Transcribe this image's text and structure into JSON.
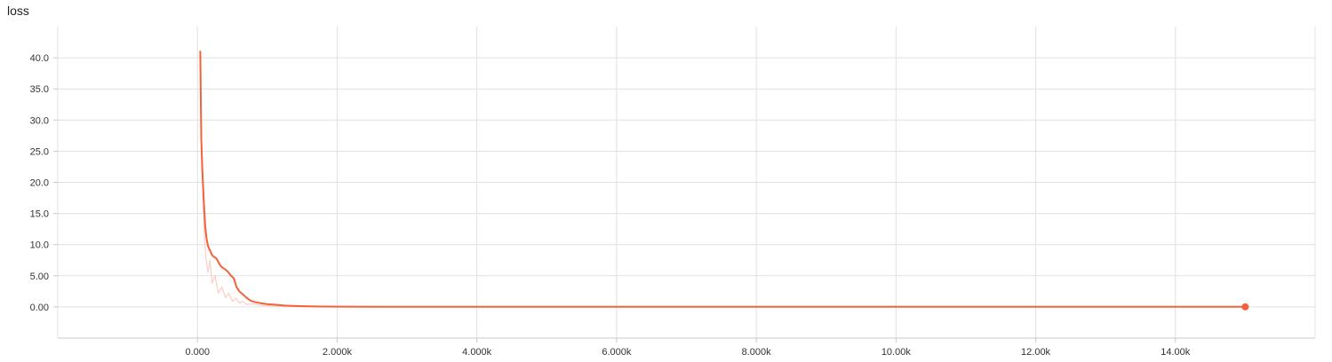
{
  "chart_data": {
    "type": "line",
    "title": "loss",
    "xlabel": "",
    "ylabel": "",
    "xlim": [
      -2000,
      16000
    ],
    "ylim": [
      -5,
      45
    ],
    "x_ticks": [
      {
        "value": 0,
        "label": "0.000"
      },
      {
        "value": 2000,
        "label": "2.000k"
      },
      {
        "value": 4000,
        "label": "4.000k"
      },
      {
        "value": 6000,
        "label": "6.000k"
      },
      {
        "value": 8000,
        "label": "8.000k"
      },
      {
        "value": 10000,
        "label": "10.00k"
      },
      {
        "value": 12000,
        "label": "12.00k"
      },
      {
        "value": 14000,
        "label": "14.00k"
      }
    ],
    "y_ticks": [
      {
        "value": 0,
        "label": "0.00"
      },
      {
        "value": 5,
        "label": "5.00"
      },
      {
        "value": 10,
        "label": "10.0"
      },
      {
        "value": 15,
        "label": "15.0"
      },
      {
        "value": 20,
        "label": "20.0"
      },
      {
        "value": 25,
        "label": "25.0"
      },
      {
        "value": 30,
        "label": "30.0"
      },
      {
        "value": 35,
        "label": "35.0"
      },
      {
        "value": 40,
        "label": "40.0"
      }
    ],
    "grid": true,
    "colors": {
      "smoothed": "#f4623a",
      "raw": "#f9c3b5",
      "grid": "#e0e0e0",
      "axis": "#c8c8c8"
    },
    "series": [
      {
        "kind": "raw",
        "x": [
          40,
          60,
          80,
          100,
          120,
          150,
          180,
          210,
          250,
          300,
          350,
          400,
          450,
          500,
          550,
          600,
          650,
          700,
          800,
          900,
          1000,
          1200,
          1500,
          2000,
          3000,
          4000,
          5000,
          7000,
          10000,
          13000,
          15000
        ],
        "y": [
          40.5,
          24.0,
          17.5,
          11.0,
          8.0,
          5.5,
          7.5,
          3.8,
          5.0,
          2.2,
          3.2,
          1.5,
          2.2,
          0.9,
          1.4,
          0.6,
          0.9,
          0.4,
          0.5,
          0.25,
          0.2,
          0.1,
          0.06,
          0.04,
          0.03,
          0.02,
          0.02,
          0.02,
          0.02,
          0.02,
          0.02
        ]
      },
      {
        "kind": "smoothed",
        "x": [
          40,
          55,
          70,
          90,
          110,
          130,
          150,
          180,
          210,
          240,
          270,
          300,
          330,
          360,
          400,
          440,
          480,
          520,
          560,
          600,
          650,
          700,
          760,
          820,
          900,
          1000,
          1100,
          1250,
          1400,
          1600,
          1800,
          2000,
          2500,
          3000,
          4000,
          5000,
          6000,
          8000,
          10000,
          12000,
          14000,
          15000
        ],
        "y": [
          41.0,
          27.0,
          22.0,
          17.0,
          13.0,
          11.0,
          9.8,
          9.0,
          8.3,
          8.0,
          7.8,
          7.2,
          6.6,
          6.3,
          6.0,
          5.6,
          5.0,
          4.6,
          3.2,
          2.5,
          2.0,
          1.5,
          1.0,
          0.8,
          0.6,
          0.45,
          0.35,
          0.22,
          0.14,
          0.08,
          0.05,
          0.04,
          0.03,
          0.03,
          0.02,
          0.01,
          0.01,
          0.01,
          0.01,
          0.01,
          0.01,
          0.01
        ]
      }
    ],
    "last_point": {
      "x": 15000,
      "y": 0.01
    }
  }
}
